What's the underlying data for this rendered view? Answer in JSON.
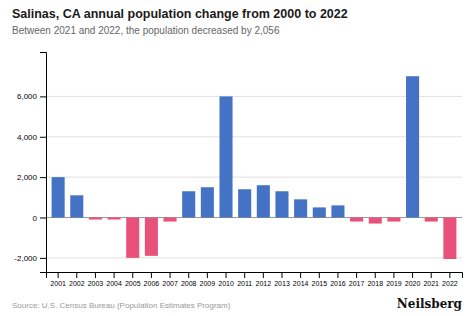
{
  "chart_data": {
    "type": "bar",
    "title": "Salinas, CA annual population change from 2000 to 2022",
    "subtitle": "Between 2021 and 2022, the population decreased by 2,056",
    "annotations": [
      "Source: U.S. Census Bureau (Population Estimates Program)",
      "Neilsberg"
    ],
    "categories": [
      "2001",
      "2002",
      "2003",
      "2004",
      "2005",
      "2006",
      "2007",
      "2008",
      "2009",
      "2010",
      "2011",
      "2012",
      "2013",
      "2014",
      "2015",
      "2016",
      "2017",
      "2018",
      "2019",
      "2020",
      "2021",
      "2022"
    ],
    "values": [
      2000,
      1100,
      -100,
      -100,
      -2000,
      -1900,
      -200,
      1300,
      1500,
      6000,
      1400,
      1600,
      1300,
      900,
      500,
      600,
      -200,
      -300,
      -200,
      7000,
      -200,
      -2056
    ],
    "colors": [
      "#4472C4",
      "#4472C4",
      "#E8527A",
      "#E8527A",
      "#E8527A",
      "#E8527A",
      "#E8527A",
      "#4472C4",
      "#4472C4",
      "#4472C4",
      "#4472C4",
      "#4472C4",
      "#4472C4",
      "#4472C4",
      "#4472C4",
      "#4472C4",
      "#E8527A",
      "#E8527A",
      "#E8527A",
      "#4472C4",
      "#E8527A",
      "#E8527A"
    ],
    "ylim": [
      -2700,
      8200
    ],
    "yticks": [
      {
        "value": -2000,
        "label": "-2,000"
      },
      0,
      {
        "value": 2000,
        "label": "2,000"
      },
      {
        "value": 4000,
        "label": "4,000"
      },
      {
        "value": 6000,
        "label": "6,000"
      }
    ],
    "grid": true
  }
}
